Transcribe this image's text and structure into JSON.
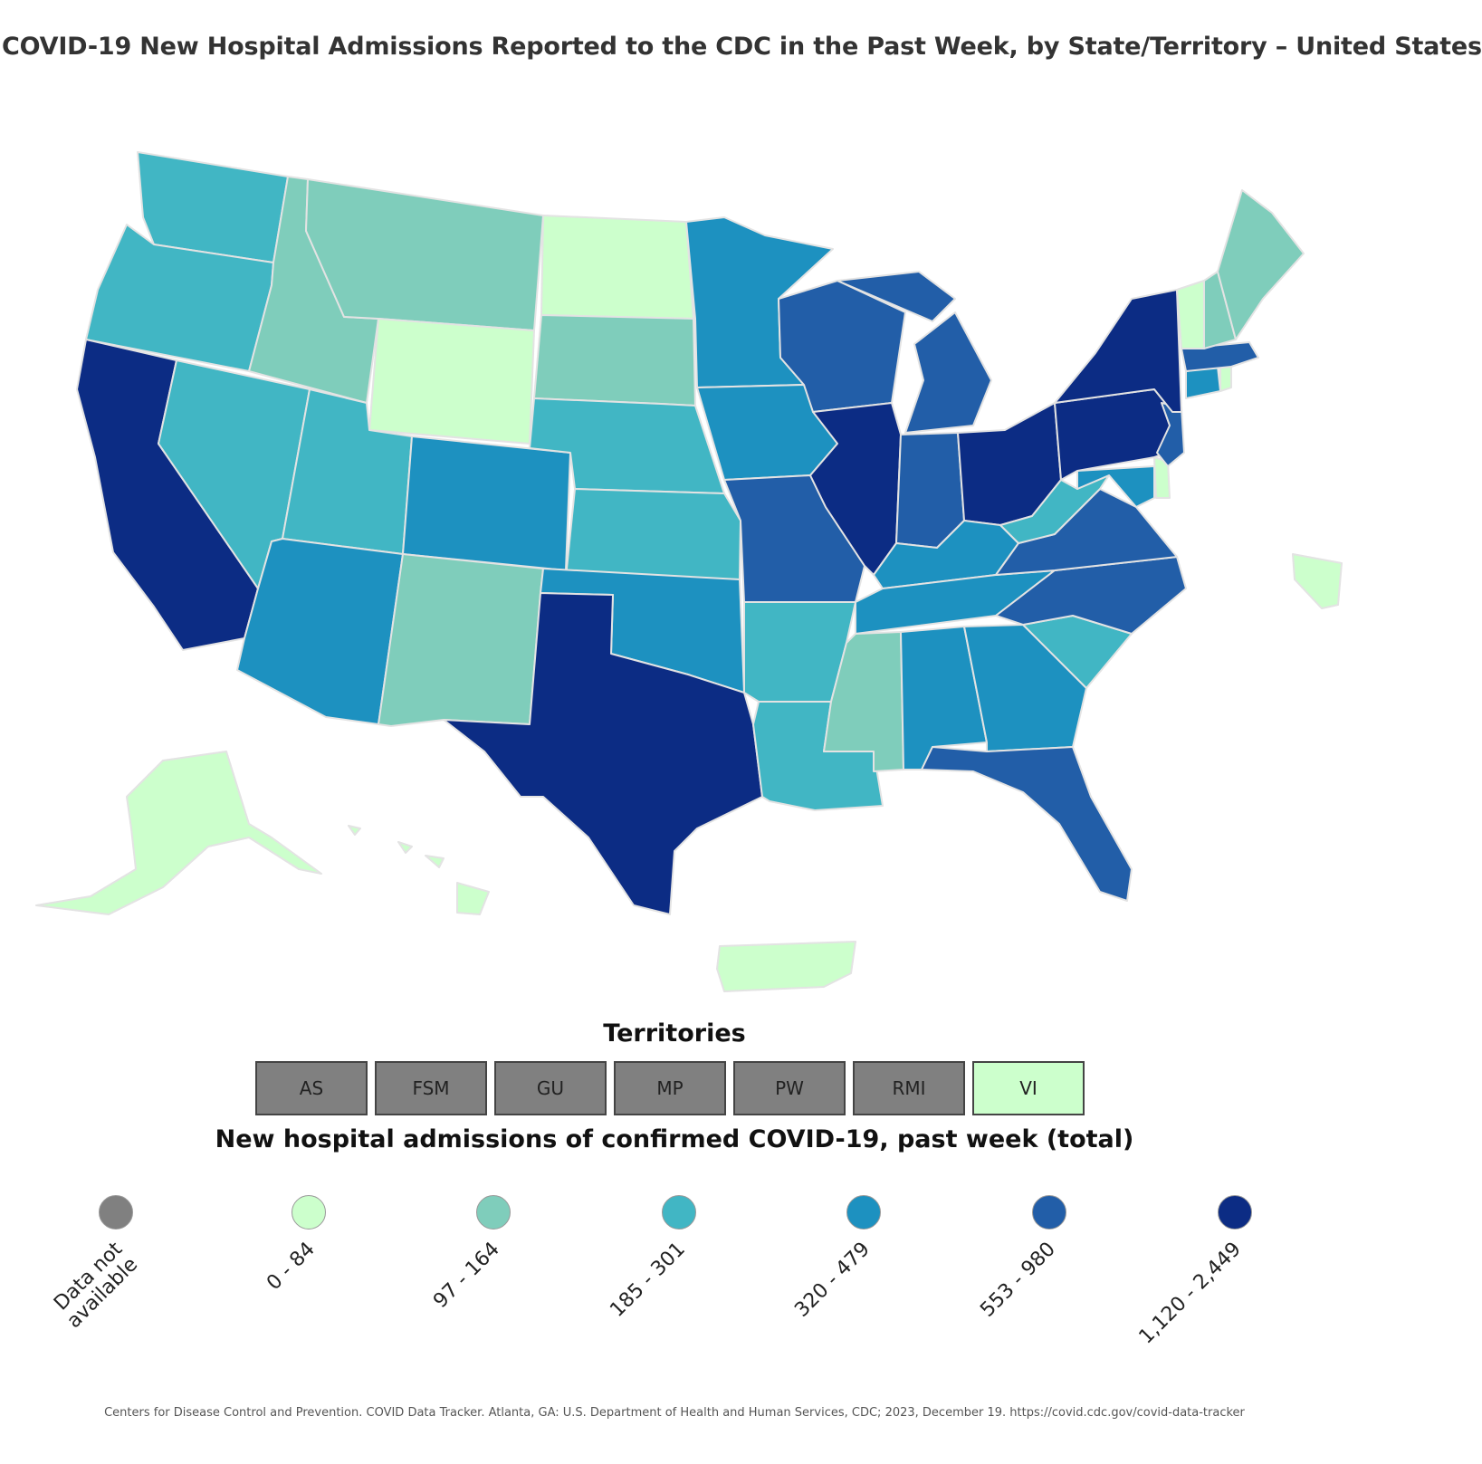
{
  "title": "COVID-19 New Hospital Admissions Reported to the CDC in the Past Week, by State/Territory – United States",
  "colors": {
    "na": "#808080",
    "c1": "#ccffcc",
    "c2": "#7fcdbb",
    "c3": "#41b6c4",
    "c4": "#1d91c0",
    "c5": "#225ea8",
    "c6": "#0c2c84"
  },
  "states": [
    {
      "name": "Washington",
      "class": "c3"
    },
    {
      "name": "Oregon",
      "class": "c3"
    },
    {
      "name": "California",
      "class": "c6"
    },
    {
      "name": "Nevada",
      "class": "c3"
    },
    {
      "name": "Idaho",
      "class": "c2"
    },
    {
      "name": "Montana",
      "class": "c2"
    },
    {
      "name": "Wyoming",
      "class": "c1"
    },
    {
      "name": "Utah",
      "class": "c3"
    },
    {
      "name": "Arizona",
      "class": "c4"
    },
    {
      "name": "Colorado",
      "class": "c4"
    },
    {
      "name": "New Mexico",
      "class": "c2"
    },
    {
      "name": "North Dakota",
      "class": "c1"
    },
    {
      "name": "South Dakota",
      "class": "c2"
    },
    {
      "name": "Nebraska",
      "class": "c3"
    },
    {
      "name": "Kansas",
      "class": "c3"
    },
    {
      "name": "Oklahoma",
      "class": "c4"
    },
    {
      "name": "Texas",
      "class": "c6"
    },
    {
      "name": "Minnesota",
      "class": "c4"
    },
    {
      "name": "Iowa",
      "class": "c4"
    },
    {
      "name": "Missouri",
      "class": "c5"
    },
    {
      "name": "Arkansas",
      "class": "c3"
    },
    {
      "name": "Louisiana",
      "class": "c3"
    },
    {
      "name": "Wisconsin",
      "class": "c5"
    },
    {
      "name": "Illinois",
      "class": "c6"
    },
    {
      "name": "Michigan",
      "class": "c5"
    },
    {
      "name": "Indiana",
      "class": "c5"
    },
    {
      "name": "Ohio",
      "class": "c6"
    },
    {
      "name": "Kentucky",
      "class": "c4"
    },
    {
      "name": "Tennessee",
      "class": "c4"
    },
    {
      "name": "Mississippi",
      "class": "c2"
    },
    {
      "name": "Alabama",
      "class": "c4"
    },
    {
      "name": "Georgia",
      "class": "c4"
    },
    {
      "name": "Florida",
      "class": "c5"
    },
    {
      "name": "South Carolina",
      "class": "c3"
    },
    {
      "name": "North Carolina",
      "class": "c5"
    },
    {
      "name": "Virginia",
      "class": "c5"
    },
    {
      "name": "West Virginia",
      "class": "c3"
    },
    {
      "name": "Maryland",
      "class": "c4"
    },
    {
      "name": "Delaware",
      "class": "c1"
    },
    {
      "name": "Pennsylvania",
      "class": "c6"
    },
    {
      "name": "New Jersey",
      "class": "c5"
    },
    {
      "name": "New York",
      "class": "c6"
    },
    {
      "name": "Connecticut",
      "class": "c4"
    },
    {
      "name": "Rhode Island",
      "class": "c1"
    },
    {
      "name": "Massachusetts",
      "class": "c5"
    },
    {
      "name": "Vermont",
      "class": "c1"
    },
    {
      "name": "New Hampshire",
      "class": "c2"
    },
    {
      "name": "Maine",
      "class": "c2"
    },
    {
      "name": "Alaska",
      "class": "c1"
    },
    {
      "name": "Hawaii",
      "class": "c1"
    },
    {
      "name": "Puerto Rico",
      "class": "c1"
    },
    {
      "name": "District of Columbia",
      "class": "c1"
    }
  ],
  "territories": {
    "title": "Territories",
    "items": [
      {
        "label": "AS",
        "class": "na"
      },
      {
        "label": "FSM",
        "class": "na"
      },
      {
        "label": "GU",
        "class": "na"
      },
      {
        "label": "MP",
        "class": "na"
      },
      {
        "label": "PW",
        "class": "na"
      },
      {
        "label": "RMI",
        "class": "na"
      },
      {
        "label": "VI",
        "class": "c1"
      }
    ]
  },
  "legend": {
    "title": "New hospital admissions of confirmed COVID-19, past week (total)",
    "items": [
      {
        "label": "Data not\navailable",
        "class": "na"
      },
      {
        "label": "0 - 84",
        "class": "c1"
      },
      {
        "label": "97 - 164",
        "class": "c2"
      },
      {
        "label": "185 - 301",
        "class": "c3"
      },
      {
        "label": "320 - 479",
        "class": "c4"
      },
      {
        "label": "553 - 980",
        "class": "c5"
      },
      {
        "label": "1,120 - 2,449",
        "class": "c6"
      }
    ]
  },
  "footer": "Centers for Disease Control and Prevention. COVID Data Tracker. Atlanta, GA: U.S. Department of Health and Human Services, CDC; 2023, December 19. https://covid.cdc.gov/covid-data-tracker"
}
